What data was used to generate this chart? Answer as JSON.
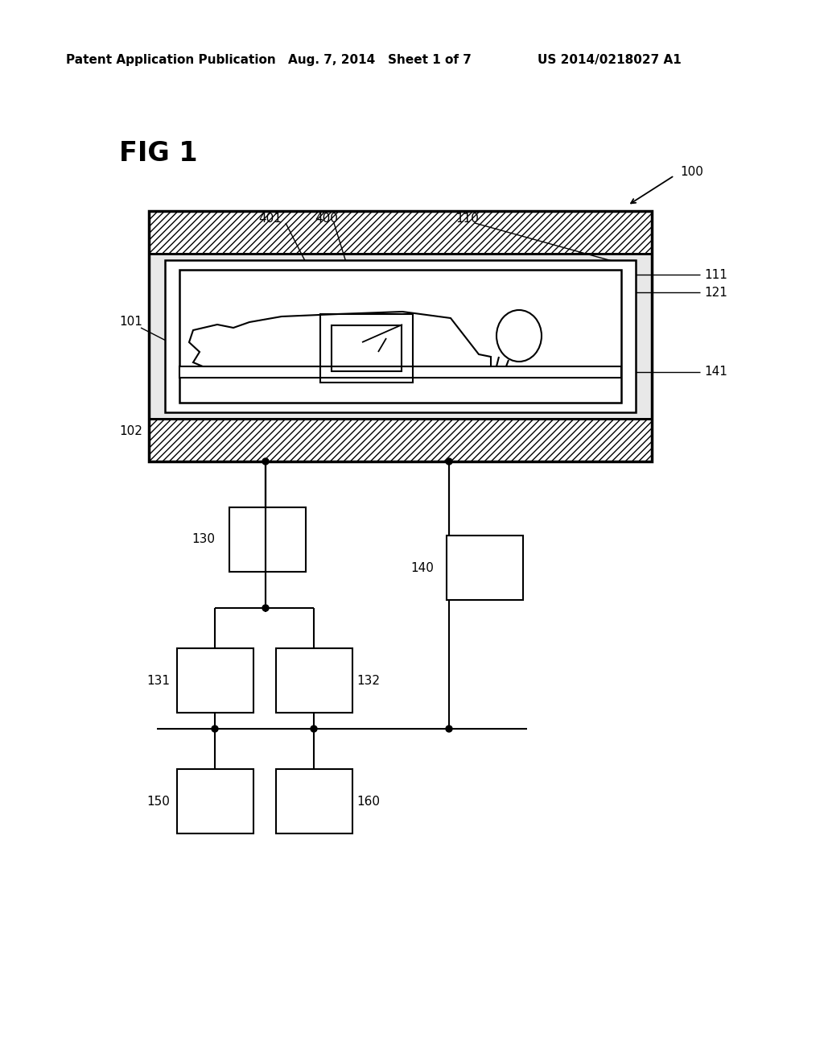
{
  "bg_color": "#ffffff",
  "header_left": "Patent Application Publication",
  "header_mid": "Aug. 7, 2014   Sheet 1 of 7",
  "header_right": "US 2014/0218027 A1",
  "fig_label": "FIG 1",
  "label_100": "100",
  "label_110": "110",
  "label_111": "111",
  "label_121": "121",
  "label_141": "141",
  "label_101": "101",
  "label_102": "102",
  "label_400": "400",
  "label_401": "401",
  "label_130": "130",
  "label_131": "131",
  "label_132": "132",
  "label_140": "140",
  "label_150": "150",
  "label_160": "160"
}
